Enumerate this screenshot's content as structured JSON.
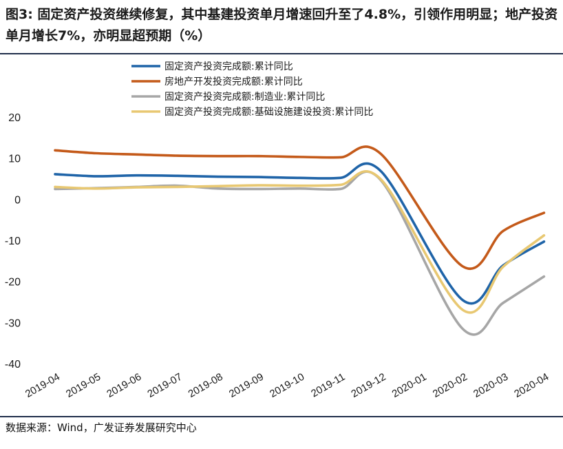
{
  "header": {
    "title": "图3: 固定资产投资继续修复，其中基建投资单月增速回升至了4.8%，引领作用明显；地产投资单月增长7%，亦明显超预期（%）"
  },
  "footer": {
    "source": "数据来源：Wind，广发证券发展研究中心"
  },
  "chart_data": {
    "type": "line",
    "title": "图3: 固定资产投资继续修复，其中基建投资单月增速回升至了4.8%，引领作用明显；地产投资单月增长7%，亦明显超预期（%）",
    "xlabel": "",
    "ylabel": "",
    "ylim": [
      -40,
      20
    ],
    "yticks": [
      20,
      10,
      0,
      -10,
      -20,
      -30,
      -40
    ],
    "grid": false,
    "legend_position": "top",
    "categories": [
      "2019-04",
      "2019-05",
      "2019-06",
      "2019-07",
      "2019-08",
      "2019-09",
      "2019-10",
      "2019-11",
      "2019-12",
      "2020-01",
      "2020-02",
      "2020-03",
      "2020-04"
    ],
    "series": [
      {
        "name": "固定资产投资完成额:累计同比",
        "color": "#1f64a8",
        "x": [
          "2019-04",
          "2019-05",
          "2019-06",
          "2019-07",
          "2019-08",
          "2019-09",
          "2019-10",
          "2019-11",
          "2019-12",
          "2020-02",
          "2020-03",
          "2020-04"
        ],
        "values": [
          6.1,
          5.6,
          5.8,
          5.7,
          5.5,
          5.4,
          5.2,
          5.2,
          6.8,
          -24.5,
          -16.1,
          -10.3
        ]
      },
      {
        "name": "房地产开发投资完成额:累计同比",
        "color": "#c45a1a",
        "x": [
          "2019-04",
          "2019-05",
          "2019-06",
          "2019-07",
          "2019-08",
          "2019-09",
          "2019-10",
          "2019-11",
          "2019-12",
          "2020-02",
          "2020-03",
          "2020-04"
        ],
        "values": [
          11.9,
          11.2,
          10.9,
          10.6,
          10.5,
          10.5,
          10.3,
          10.2,
          11.0,
          -16.3,
          -7.7,
          -3.3
        ]
      },
      {
        "name": "固定资产投资完成额:制造业:累计同比",
        "color": "#a6a6a6",
        "x": [
          "2019-04",
          "2019-05",
          "2019-06",
          "2019-07",
          "2019-08",
          "2019-09",
          "2019-10",
          "2019-11",
          "2019-12",
          "2020-02",
          "2020-03",
          "2020-04"
        ],
        "values": [
          2.5,
          2.7,
          3.0,
          3.3,
          2.6,
          2.5,
          2.6,
          2.5,
          4.6,
          -31.5,
          -25.2,
          -18.8
        ]
      },
      {
        "name": "固定资产投资完成额:基础设施建设投资:累计同比",
        "color": "#e8c872",
        "x": [
          "2019-04",
          "2019-05",
          "2019-06",
          "2019-07",
          "2019-08",
          "2019-09",
          "2019-10",
          "2019-11",
          "2019-12",
          "2020-02",
          "2020-03",
          "2020-04"
        ],
        "values": [
          3.0,
          2.6,
          2.9,
          3.0,
          3.2,
          3.4,
          3.3,
          3.5,
          4.8,
          -26.9,
          -16.4,
          -8.8
        ]
      }
    ]
  }
}
